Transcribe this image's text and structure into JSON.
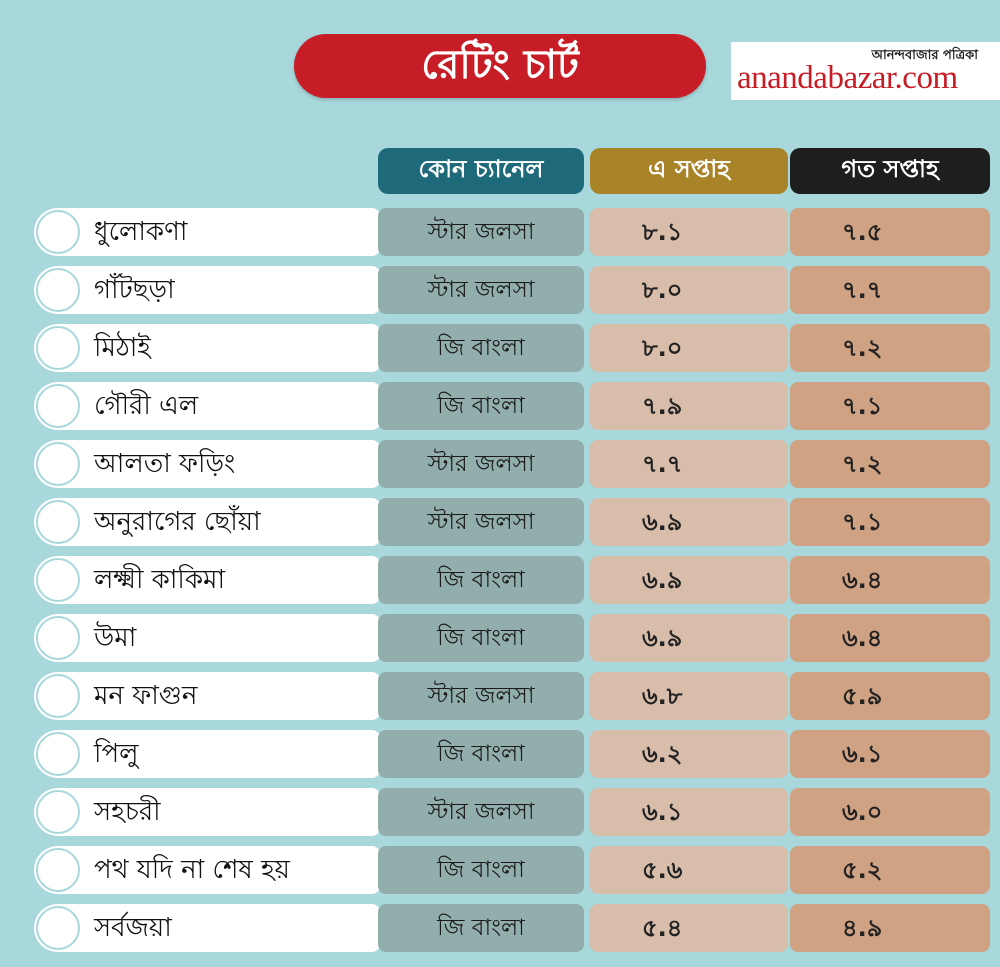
{
  "title": "রেটিং চার্ট",
  "logo": {
    "bengali": "আনন্দবাজার পত্রিকা",
    "english": "anandabazar.com"
  },
  "colors": {
    "title_bg": "#c61d26",
    "header_channel": "#1f6a7a",
    "header_this_week": "#a88328",
    "header_last_week": "#1e1e1e",
    "background": "#a8d8dc"
  },
  "headers": {
    "channel": "কোন চ্যানেল",
    "this_week": "এ সপ্তাহ",
    "last_week": "গত সপ্তাহ"
  },
  "rows": [
    {
      "name": "ধুলোকণা",
      "channel": "স্টার জলসা",
      "this_week": "৮.১",
      "last_week": "৭.৫"
    },
    {
      "name": "গাঁটছড়া",
      "channel": "স্টার জলসা",
      "this_week": "৮.০",
      "last_week": "৭.৭"
    },
    {
      "name": "মিঠাই",
      "channel": "জি বাংলা",
      "this_week": "৮.০",
      "last_week": "৭.২"
    },
    {
      "name": "গৌরী এল",
      "channel": "জি বাংলা",
      "this_week": "৭.৯",
      "last_week": "৭.১"
    },
    {
      "name": "আলতা ফড়িং",
      "channel": "স্টার জলসা",
      "this_week": "৭.৭",
      "last_week": "৭.২"
    },
    {
      "name": "অনুরাগের ছোঁয়া",
      "channel": "স্টার জলসা",
      "this_week": "৬.৯",
      "last_week": "৭.১"
    },
    {
      "name": "লক্ষ্মী কাকিমা",
      "channel": "জি বাংলা",
      "this_week": "৬.৯",
      "last_week": "৬.৪"
    },
    {
      "name": "উমা",
      "channel": "জি বাংলা",
      "this_week": "৬.৯",
      "last_week": "৬.৪"
    },
    {
      "name": "মন ফাগুন",
      "channel": "স্টার জলসা",
      "this_week": "৬.৮",
      "last_week": "৫.৯"
    },
    {
      "name": "পিলু",
      "channel": "জি বাংলা",
      "this_week": "৬.২",
      "last_week": "৬.১"
    },
    {
      "name": "সহচরী",
      "channel": "স্টার জলসা",
      "this_week": "৬.১",
      "last_week": "৬.০"
    },
    {
      "name": "পথ যদি না শেষ হয়",
      "channel": "জি বাংলা",
      "this_week": "৫.৬",
      "last_week": "৫.২"
    },
    {
      "name": "সর্বজয়া",
      "channel": "জি বাংলা",
      "this_week": "৫.৪",
      "last_week": "৪.৯"
    }
  ],
  "chart_data": {
    "type": "table",
    "title": "রেটিং চার্ট",
    "columns": [
      "",
      "কোন চ্যানেল",
      "এ সপ্তাহ",
      "গত সপ্তাহ"
    ],
    "categories": [
      "ধুলোকণা",
      "গাঁটছড়া",
      "মিঠাই",
      "গৌরী এল",
      "আলতা ফড়িং",
      "অনুরাগের ছোঁয়া",
      "লক্ষ্মী কাকিমা",
      "উমা",
      "মন ফাগুন",
      "পিলু",
      "সহচরী",
      "পথ যদি না শেষ হয়",
      "সর্বজয়া"
    ],
    "series": [
      {
        "name": "এ সপ্তাহ",
        "values": [
          8.1,
          8.0,
          8.0,
          7.9,
          7.7,
          6.9,
          6.9,
          6.9,
          6.8,
          6.2,
          6.1,
          5.6,
          5.4
        ]
      },
      {
        "name": "গত সপ্তাহ",
        "values": [
          7.5,
          7.7,
          7.2,
          7.1,
          7.2,
          7.1,
          6.4,
          6.4,
          5.9,
          6.1,
          6.0,
          5.2,
          4.9
        ]
      }
    ]
  }
}
